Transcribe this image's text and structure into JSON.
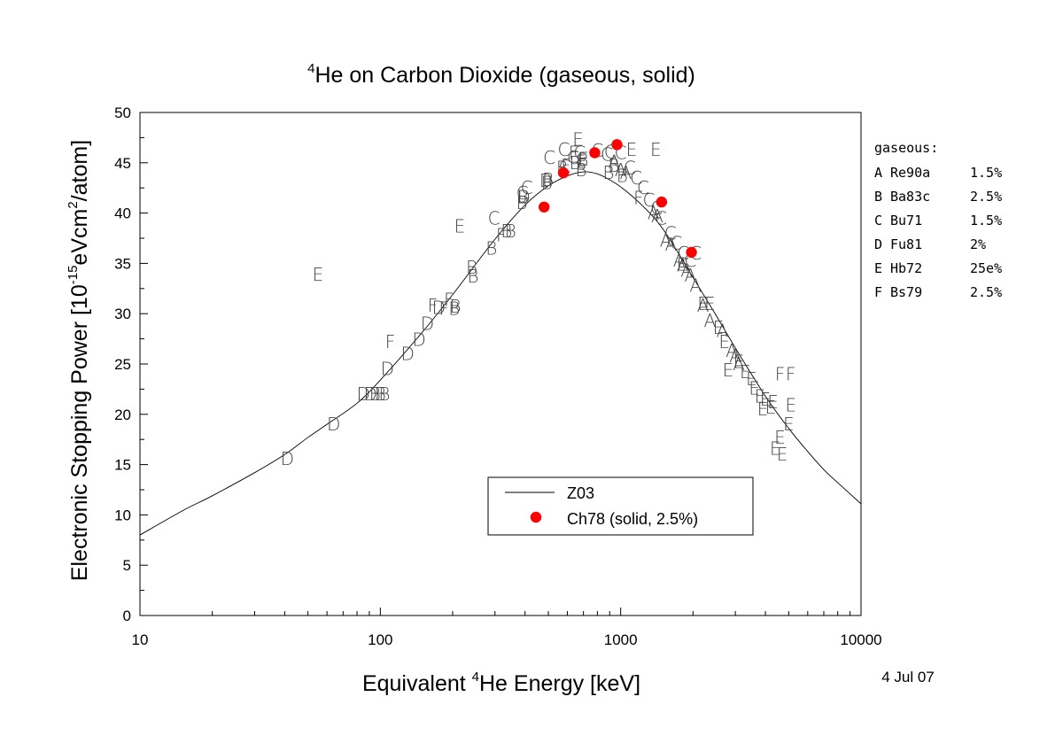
{
  "chart_data": {
    "type": "scatter",
    "title": {
      "superscript": "4",
      "text": "He on Carbon Dioxide (gaseous, solid)"
    },
    "xlabel": {
      "prefix": "Equivalent ",
      "superscript": "4",
      "suffix": "He Energy [keV]"
    },
    "ylabel": {
      "prefix": "Electronic Stopping Power [10",
      "superscript1": "-15",
      "middle": "eVcm",
      "superscript2": "2",
      "suffix": "/atom]"
    },
    "date_stamp": "4 Jul 07",
    "x_scale": "log",
    "xlim": [
      10,
      10000
    ],
    "ylim": [
      0,
      50
    ],
    "x_ticks": [
      {
        "value": 10,
        "label": "10"
      },
      {
        "value": 100,
        "label": "100"
      },
      {
        "value": 1000,
        "label": "1000"
      },
      {
        "value": 10000,
        "label": "10000"
      }
    ],
    "y_ticks": [
      {
        "value": 0,
        "label": "0"
      },
      {
        "value": 5,
        "label": "5"
      },
      {
        "value": 10,
        "label": "10"
      },
      {
        "value": 15,
        "label": "15"
      },
      {
        "value": 20,
        "label": "20"
      },
      {
        "value": 25,
        "label": "25"
      },
      {
        "value": 30,
        "label": "30"
      },
      {
        "value": 35,
        "label": "35"
      },
      {
        "value": 40,
        "label": "40"
      },
      {
        "value": 45,
        "label": "45"
      },
      {
        "value": 50,
        "label": "50"
      }
    ],
    "grid": false,
    "legend": {
      "placement": "lower-center",
      "entries": [
        {
          "label": "Z03",
          "marker": "line"
        },
        {
          "label": "Ch78 (solid, 2.5%)",
          "marker": "red-dot"
        }
      ]
    },
    "side_legend": {
      "placement": "right",
      "heading": "gaseous:",
      "entries": [
        {
          "letter": "A",
          "ref": "Re90a",
          "unc": "1.5%"
        },
        {
          "letter": "B",
          "ref": "Ba83c",
          "unc": "2.5%"
        },
        {
          "letter": "C",
          "ref": "Bu71",
          "unc": "1.5%"
        },
        {
          "letter": "D",
          "ref": "Fu81",
          "unc": "2%"
        },
        {
          "letter": "E",
          "ref": "Hb72",
          "unc": "25e%"
        },
        {
          "letter": "F",
          "ref": "Bs79",
          "unc": "2.5%"
        }
      ]
    },
    "curve": {
      "name": "Z03",
      "color": "#000000",
      "points": [
        [
          10,
          8.0
        ],
        [
          15,
          10.4
        ],
        [
          20,
          11.9
        ],
        [
          30,
          14.2
        ],
        [
          40,
          16.0
        ],
        [
          50,
          17.7
        ],
        [
          60,
          19.0
        ],
        [
          80,
          21.1
        ],
        [
          100,
          23.4
        ],
        [
          150,
          28.2
        ],
        [
          200,
          31.9
        ],
        [
          300,
          37.4
        ],
        [
          400,
          40.8
        ],
        [
          500,
          42.7
        ],
        [
          600,
          43.7
        ],
        [
          700,
          44.1
        ],
        [
          800,
          43.9
        ],
        [
          900,
          43.3
        ],
        [
          1000,
          42.6
        ],
        [
          1200,
          41.0
        ],
        [
          1500,
          38.4
        ],
        [
          2000,
          33.6
        ],
        [
          2500,
          29.8
        ],
        [
          3000,
          26.6
        ],
        [
          4000,
          21.8
        ],
        [
          5000,
          18.6
        ],
        [
          6000,
          16.3
        ],
        [
          7000,
          14.5
        ],
        [
          8000,
          13.2
        ],
        [
          10000,
          11.1
        ]
      ]
    },
    "series": [
      {
        "letter": "A",
        "x": [
          940,
          1000,
          1050,
          1370,
          1420,
          1540,
          1620,
          1750,
          1810,
          1880,
          1950,
          2050,
          2200,
          2350,
          2650,
          2900,
          3000,
          3100
        ],
        "y": [
          45.1,
          44.3,
          44.0,
          40.0,
          39.7,
          37.3,
          36.9,
          35.3,
          34.8,
          34.3,
          33.8,
          32.8,
          30.8,
          29.3,
          28.3,
          26.3,
          25.8,
          25.0
        ]
      },
      {
        "letter": "B",
        "x": [
          95,
          100,
          104,
          203,
          205,
          240,
          243,
          290,
          335,
          348,
          388,
          392,
          493,
          498,
          570,
          645,
          685,
          695,
          890,
          935,
          1015
        ],
        "y": [
          22.0,
          22.0,
          22.0,
          30.5,
          30.7,
          34.6,
          33.7,
          36.5,
          38.2,
          38.2,
          41.0,
          41.6,
          43.0,
          43.3,
          44.5,
          45.0,
          44.3,
          45.3,
          44.0,
          44.7,
          43.7
        ]
      },
      {
        "letter": "C",
        "x": [
          297,
          390,
          407,
          505,
          580,
          585,
          635,
          675,
          800,
          875,
          905,
          1000,
          1090,
          1160,
          1240,
          1310,
          1410,
          1470,
          1610,
          1700,
          1820,
          1950,
          2050
        ],
        "y": [
          39.5,
          42.0,
          42.5,
          45.5,
          46.3,
          44.6,
          45.5,
          46.0,
          46.2,
          45.8,
          46.1,
          46.0,
          44.5,
          43.5,
          42.5,
          41.3,
          40.5,
          39.5,
          38.0,
          37.0,
          36.0,
          35.3,
          36.0
        ]
      },
      {
        "letter": "D",
        "x": [
          41,
          64,
          85,
          91,
          107,
          130,
          145,
          157,
          175,
          395,
          490
        ],
        "y": [
          15.6,
          19.0,
          22.0,
          22.0,
          24.5,
          26.0,
          27.4,
          29.0,
          30.6,
          41.6,
          43.2
        ]
      },
      {
        "letter": "E",
        "x": [
          55,
          214,
          665,
          685,
          700,
          1110,
          1400,
          1800,
          2200,
          2350,
          2550,
          2700,
          2800,
          3100,
          3300,
          3500,
          3600,
          3800,
          3900,
          4000,
          4200,
          4300,
          4400,
          4600,
          4700,
          5000,
          5100
        ],
        "y": [
          33.9,
          38.7,
          47.3,
          45.1,
          45.4,
          46.3,
          46.3,
          34.9,
          31.0,
          31.0,
          28.6,
          27.2,
          24.4,
          25.2,
          24.2,
          23.5,
          22.6,
          21.8,
          20.5,
          21.5,
          20.7,
          21.2,
          16.6,
          17.7,
          16.0,
          19.0,
          20.9
        ]
      },
      {
        "letter": "F",
        "x": [
          110,
          165,
          184,
          193,
          318,
          592,
          637,
          1186,
          4600,
          5100
        ],
        "y": [
          27.2,
          30.8,
          30.5,
          31.4,
          37.8,
          44.7,
          46.0,
          41.5,
          24.0,
          24.0
        ]
      },
      {
        "name": "Ch78 (solid, 2.5%)",
        "marker": "red-dot",
        "color": "#ff0000",
        "x": [
          480,
          578,
          780,
          965,
          1480,
          1970
        ],
        "y": [
          40.6,
          44.0,
          46.0,
          46.8,
          41.1,
          36.1
        ]
      }
    ]
  }
}
